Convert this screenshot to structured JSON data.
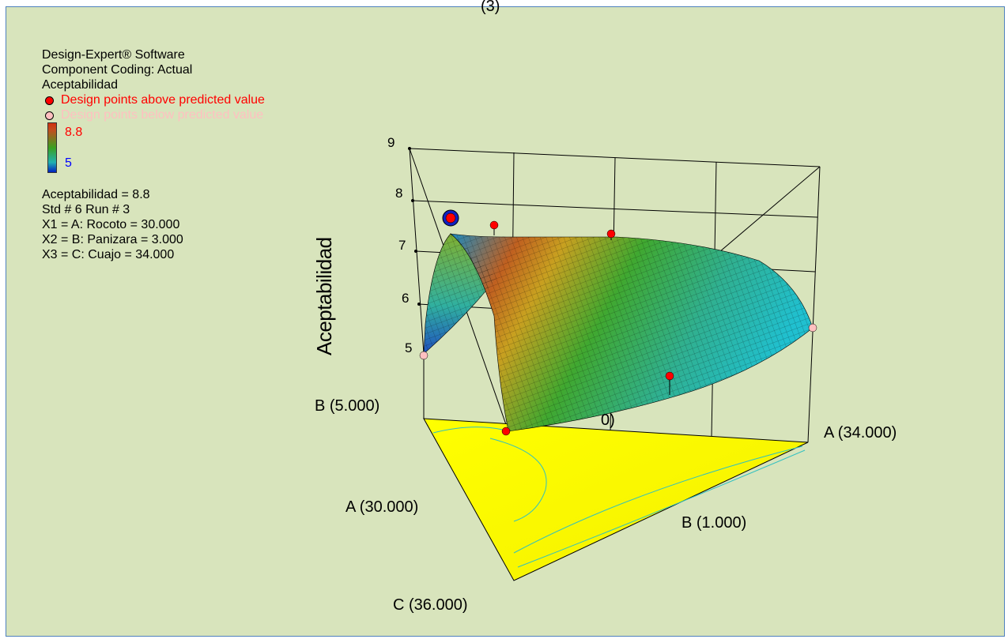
{
  "top_fragment": "(3)",
  "info": {
    "software": "Design-Expert® Software",
    "coding": "Component Coding: Actual",
    "response": "Aceptabilidad"
  },
  "legend": {
    "above": "Design points above predicted value",
    "below": "Design points below predicted value",
    "above_color": "#ff0000",
    "below_color": "#ffc0c0",
    "colorbar_max": "8.8",
    "colorbar_min": "5",
    "max_color": "#ff0000",
    "min_color": "#0000ff"
  },
  "details": {
    "value": "Aceptabilidad = 8.8",
    "std_run": "Std # 6 Run # 3",
    "x1": "X1 = A: Rocoto = 30.000",
    "x2": "X2 = B: Panizara = 3.000",
    "x3": "X3 = C: Cuajo = 34.000"
  },
  "chart_data": {
    "type": "surface",
    "title": "",
    "zlabel": "Aceptabilidad",
    "zlim": [
      5,
      9
    ],
    "z_ticks": [
      "9",
      "8",
      "7",
      "6",
      "5"
    ],
    "vertex_labels": {
      "b_top": "B (5.000)",
      "a_right": "A (34.000)",
      "a_left": "A (30.000)",
      "b_bottom": "B (1.000)",
      "c_bottom": "C (36.000)"
    },
    "hidden_fragment": "0)",
    "design_points": [
      {
        "label": "above",
        "z": 8.8,
        "highlight": true
      },
      {
        "label": "above",
        "z": 8.6
      },
      {
        "label": "above",
        "z": 8.4
      },
      {
        "label": "below",
        "z": 5.0
      },
      {
        "label": "below",
        "z": 5.9
      },
      {
        "label": "above",
        "z": 6.3
      },
      {
        "label": "above",
        "z": 5.6
      }
    ],
    "surface_color_scale": [
      "#0020c0",
      "#20b0b0",
      "#3aa020",
      "#c05020",
      "#d03010"
    ],
    "floor_color": "#ffff00",
    "background": "#d8e4bc"
  }
}
